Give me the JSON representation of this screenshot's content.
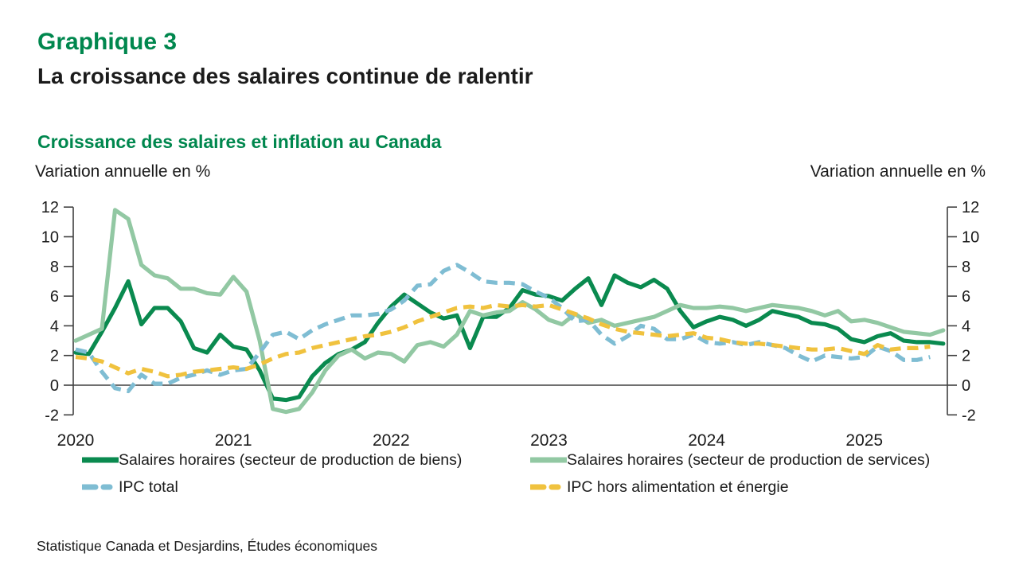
{
  "header": {
    "kicker": "Graphique 3",
    "title": "La croissance des salaires continue de ralentir"
  },
  "chart": {
    "title": "Croissance des salaires et inflation au Canada",
    "axis_note_left": "Variation annuelle en %",
    "axis_note_right": "Variation annuelle en %"
  },
  "source": "Statistique Canada et Desjardins, Études économiques",
  "colors": {
    "accent_green": "#00874e",
    "text": "#1b1b1b",
    "axis": "#404040"
  },
  "chart_data": {
    "type": "line",
    "title": "Croissance des salaires et inflation au Canada",
    "ylabel_left": "Variation annuelle en %",
    "ylabel_right": "Variation annuelle en %",
    "frequency": "monthly",
    "x_start": "2020-01",
    "x_end": "2025-07",
    "ylim": [
      -2,
      12
    ],
    "ytick_interval": 2,
    "grid": false,
    "legend_position": "bottom",
    "x_tick_labels": [
      "2020",
      "2021",
      "2022",
      "2023",
      "2024",
      "2025"
    ],
    "series": [
      {
        "name": "Salaires horaires (secteur de production de biens)",
        "color": "#0a8a4f",
        "style": "solid",
        "values": [
          2.2,
          2.1,
          3.6,
          5.2,
          7.0,
          4.1,
          5.2,
          5.2,
          4.3,
          2.5,
          2.2,
          3.4,
          2.6,
          2.4,
          1.0,
          -0.9,
          -1.0,
          -0.8,
          0.6,
          1.5,
          2.1,
          2.4,
          2.9,
          4.2,
          5.3,
          6.1,
          5.5,
          4.9,
          4.5,
          4.7,
          2.5,
          4.6,
          4.6,
          5.2,
          6.4,
          6.1,
          6.0,
          5.7,
          6.5,
          7.2,
          5.4,
          7.4,
          6.9,
          6.6,
          7.1,
          6.5,
          5.0,
          3.9,
          4.3,
          4.6,
          4.4,
          4.0,
          4.4,
          5.0,
          4.8,
          4.6,
          4.2,
          4.1,
          3.8,
          3.1,
          2.9,
          3.3,
          3.5,
          3.0,
          2.9,
          2.9,
          2.8
        ]
      },
      {
        "name": "Salaires horaires (secteur de production de services)",
        "color": "#92c8a3",
        "style": "solid",
        "values": [
          3.0,
          3.4,
          3.8,
          11.8,
          11.2,
          8.1,
          7.4,
          7.2,
          6.5,
          6.5,
          6.2,
          6.1,
          7.3,
          6.3,
          3.0,
          -1.6,
          -1.8,
          -1.6,
          -0.5,
          1.0,
          2.0,
          2.4,
          1.8,
          2.2,
          2.1,
          1.6,
          2.7,
          2.9,
          2.6,
          3.4,
          5.0,
          4.7,
          4.9,
          5.0,
          5.6,
          5.1,
          4.4,
          4.1,
          4.8,
          4.2,
          4.4,
          4.0,
          4.2,
          4.4,
          4.6,
          5.0,
          5.4,
          5.2,
          5.2,
          5.3,
          5.2,
          5.0,
          5.2,
          5.4,
          5.3,
          5.2,
          5.0,
          4.7,
          5.0,
          4.3,
          4.4,
          4.2,
          3.9,
          3.6,
          3.5,
          3.4,
          3.7
        ]
      },
      {
        "name": "IPC total",
        "color": "#7fbdd3",
        "style": "dashed",
        "values": [
          2.4,
          2.2,
          0.9,
          -0.2,
          -0.4,
          0.7,
          0.1,
          0.1,
          0.5,
          0.7,
          1.0,
          0.7,
          1.0,
          1.1,
          2.2,
          3.4,
          3.6,
          3.1,
          3.7,
          4.1,
          4.4,
          4.7,
          4.7,
          4.8,
          5.1,
          5.7,
          6.7,
          6.8,
          7.7,
          8.1,
          7.6,
          7.0,
          6.9,
          6.9,
          6.8,
          6.3,
          5.9,
          5.2,
          4.3,
          4.4,
          3.4,
          2.8,
          3.3,
          4.0,
          3.8,
          3.1,
          3.1,
          3.4,
          2.9,
          2.8,
          2.9,
          2.7,
          2.9,
          2.7,
          2.5,
          2.0,
          1.6,
          2.0,
          1.9,
          1.8,
          1.9,
          2.6,
          2.3,
          1.7,
          1.7,
          1.9
        ]
      },
      {
        "name": "IPC hors alimentation et énergie",
        "color": "#f0c23e",
        "style": "dashed",
        "values": [
          1.9,
          1.8,
          1.6,
          1.2,
          0.8,
          1.1,
          0.9,
          0.6,
          0.7,
          0.9,
          1.0,
          1.1,
          1.2,
          1.1,
          1.4,
          1.8,
          2.1,
          2.2,
          2.5,
          2.7,
          2.9,
          3.1,
          3.3,
          3.4,
          3.6,
          3.9,
          4.3,
          4.6,
          4.9,
          5.2,
          5.3,
          5.2,
          5.4,
          5.3,
          5.4,
          5.3,
          5.4,
          5.1,
          4.8,
          4.5,
          4.1,
          3.8,
          3.6,
          3.5,
          3.4,
          3.3,
          3.4,
          3.5,
          3.2,
          3.1,
          2.9,
          2.8,
          2.8,
          2.7,
          2.6,
          2.5,
          2.4,
          2.4,
          2.5,
          2.3,
          2.1,
          2.7,
          2.4,
          2.5,
          2.5,
          2.6
        ]
      }
    ]
  }
}
